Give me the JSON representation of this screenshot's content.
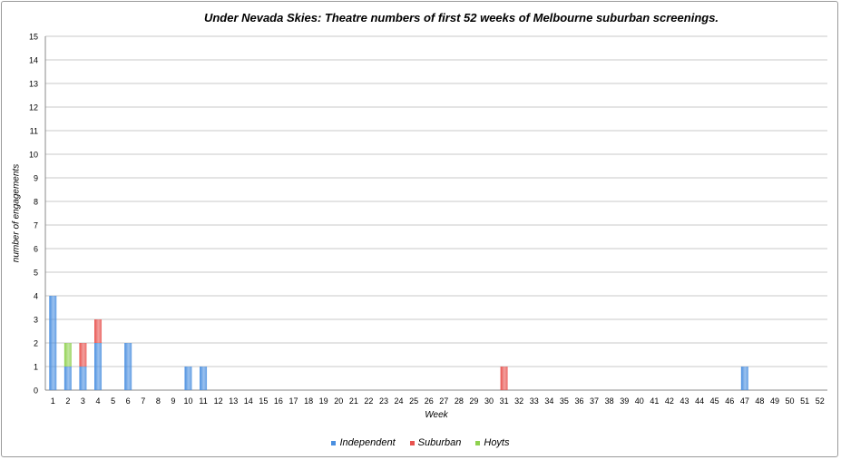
{
  "chart_data": {
    "type": "bar",
    "stacked": true,
    "title": "Under Nevada Skies: Theatre numbers of first 52 weeks of Melbourne suburban screenings.",
    "xlabel": "Week",
    "ylabel": "number of engagements",
    "ylim": [
      0,
      15
    ],
    "yticks": [
      "0",
      "1",
      "2",
      "3",
      "4",
      "5",
      "6",
      "7",
      "8",
      "9",
      "10",
      "11",
      "12",
      "13",
      "14",
      "15"
    ],
    "grid": true,
    "legend_position": "bottom",
    "categories": [
      "1",
      "2",
      "3",
      "4",
      "5",
      "6",
      "7",
      "8",
      "9",
      "10",
      "11",
      "12",
      "13",
      "14",
      "15",
      "16",
      "17",
      "18",
      "19",
      "20",
      "21",
      "22",
      "23",
      "24",
      "25",
      "26",
      "27",
      "28",
      "29",
      "30",
      "31",
      "32",
      "33",
      "34",
      "35",
      "36",
      "37",
      "38",
      "39",
      "40",
      "41",
      "42",
      "43",
      "44",
      "45",
      "46",
      "47",
      "48",
      "49",
      "50",
      "51",
      "52"
    ],
    "series": [
      {
        "name": "Independent",
        "color": "#4a8fe0",
        "values": [
          4,
          1,
          1,
          2,
          0,
          2,
          0,
          0,
          0,
          1,
          1,
          0,
          0,
          0,
          0,
          0,
          0,
          0,
          0,
          0,
          0,
          0,
          0,
          0,
          0,
          0,
          0,
          0,
          0,
          0,
          0,
          0,
          0,
          0,
          0,
          0,
          0,
          0,
          0,
          0,
          0,
          0,
          0,
          0,
          0,
          0,
          1,
          0,
          0,
          0,
          0,
          0
        ]
      },
      {
        "name": "Suburban",
        "color": "#e8534f",
        "values": [
          0,
          0,
          1,
          1,
          0,
          0,
          0,
          0,
          0,
          0,
          0,
          0,
          0,
          0,
          0,
          0,
          0,
          0,
          0,
          0,
          0,
          0,
          0,
          0,
          0,
          0,
          0,
          0,
          0,
          0,
          1,
          0,
          0,
          0,
          0,
          0,
          0,
          0,
          0,
          0,
          0,
          0,
          0,
          0,
          0,
          0,
          0,
          0,
          0,
          0,
          0,
          0
        ]
      },
      {
        "name": "Hoyts",
        "color": "#8fd14f",
        "values": [
          0,
          1,
          0,
          0,
          0,
          0,
          0,
          0,
          0,
          0,
          0,
          0,
          0,
          0,
          0,
          0,
          0,
          0,
          0,
          0,
          0,
          0,
          0,
          0,
          0,
          0,
          0,
          0,
          0,
          0,
          0,
          0,
          0,
          0,
          0,
          0,
          0,
          0,
          0,
          0,
          0,
          0,
          0,
          0,
          0,
          0,
          0,
          0,
          0,
          0,
          0,
          0
        ]
      }
    ]
  }
}
